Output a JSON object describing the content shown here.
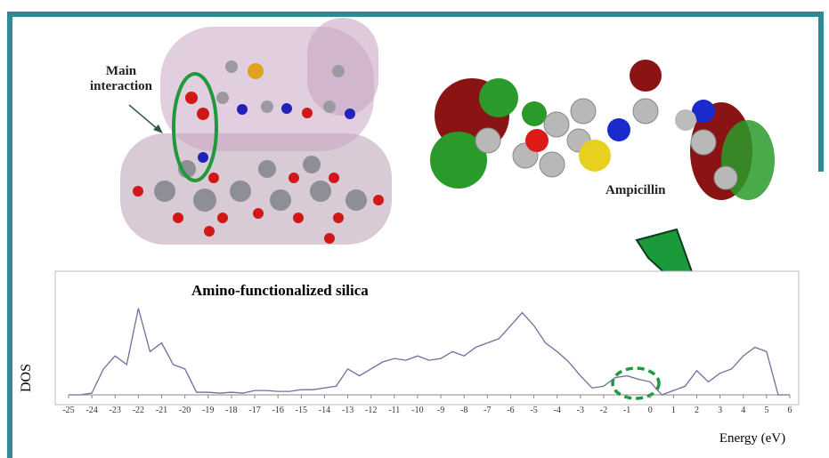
{
  "chart_data": {
    "type": "line",
    "title": "Amino-functionalized silica",
    "x_label": "Energy (eV)",
    "y_label": "DOS",
    "annotations": [
      "Main interaction",
      "Ampicillin"
    ],
    "xlim": [
      -25,
      6
    ],
    "ylim": [
      0,
      110
    ],
    "xticks": [
      -25,
      -24,
      -23,
      -22,
      -21,
      -20,
      -19,
      -18,
      -17,
      -16,
      -15,
      -14,
      -13,
      -12,
      -11,
      -10,
      -9,
      -8,
      -7,
      -6,
      -5,
      -4,
      -3,
      -2,
      -1,
      0,
      1,
      2,
      3,
      4,
      5,
      6
    ],
    "x": [
      -25,
      -24.5,
      -24,
      -23.5,
      -23,
      -22.5,
      -22,
      -21.5,
      -21,
      -20.5,
      -20,
      -19.5,
      -19,
      -18.5,
      -18,
      -17.5,
      -17,
      -16.5,
      -16,
      -15.5,
      -15,
      -14.5,
      -14,
      -13.5,
      -13,
      -12.5,
      -12,
      -11.5,
      -11,
      -10.5,
      -10,
      -9.5,
      -9,
      -8.5,
      -8,
      -7.5,
      -7,
      -6.5,
      -6,
      -5.5,
      -5,
      -4.5,
      -4,
      -3.5,
      -3,
      -2.5,
      -2,
      -1.5,
      -1,
      -0.5,
      0,
      0.5,
      1,
      1.5,
      2,
      2.5,
      3,
      3.5,
      4,
      4.5,
      5,
      5.5,
      6
    ],
    "series": [
      {
        "color": "#6f6f9e",
        "values": [
          0,
          0,
          2,
          30,
          45,
          35,
          100,
          50,
          60,
          35,
          30,
          3,
          3,
          2,
          3,
          2,
          5,
          5,
          4,
          4,
          6,
          6,
          8,
          10,
          30,
          22,
          30,
          38,
          42,
          40,
          45,
          40,
          42,
          50,
          45,
          55,
          60,
          65,
          80,
          95,
          80,
          60,
          50,
          38,
          22,
          8,
          10,
          20,
          22,
          18,
          15,
          0,
          5,
          10,
          28,
          15,
          25,
          30,
          45,
          55,
          50,
          0,
          0
        ]
      }
    ]
  }
}
